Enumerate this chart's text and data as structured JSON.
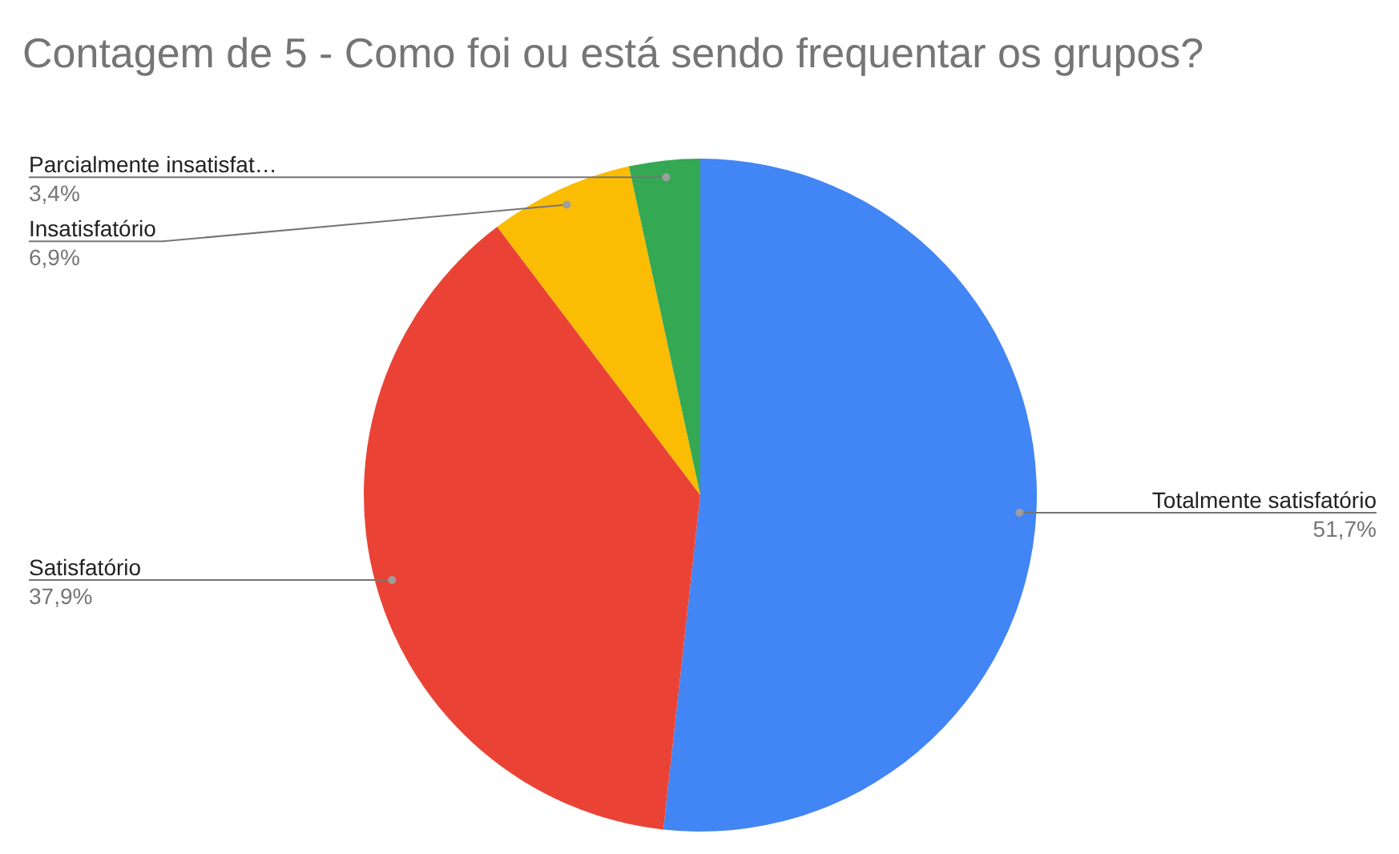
{
  "chart_data": {
    "type": "pie",
    "title": "Contagem de 5 - Como foi ou está sendo frequentar os grupos?",
    "categories": [
      "Totalmente satisfatório",
      "Satisfatório",
      "Insatisfatório",
      "Parcialmente insatisfat…"
    ],
    "values": [
      51.7,
      37.9,
      6.9,
      3.4
    ],
    "colors": [
      "#4285f4",
      "#ea4335",
      "#fbbc04",
      "#34a853"
    ],
    "value_labels": [
      "51,7%",
      "37,9%",
      "6,9%",
      "3,4%"
    ]
  }
}
